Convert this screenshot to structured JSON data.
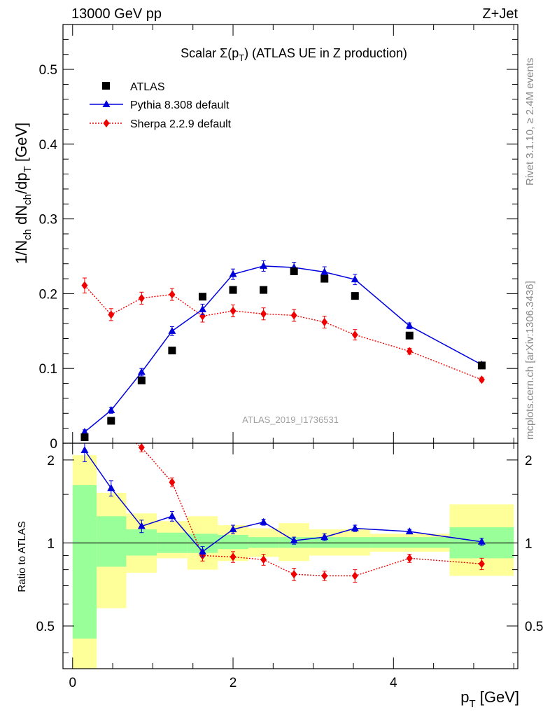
{
  "header": {
    "left": "13000 GeV pp",
    "right": "Z+Jet"
  },
  "side_labels": {
    "rivet": "Rivet 3.1.10, ≥ 2.4M events",
    "mcplots": "mcplots.cern.ch [arXiv:1306.3436]"
  },
  "watermark": "ATLAS_2019_I1736531",
  "colors": {
    "atlas": "#000000",
    "pythia": "#0000dd",
    "sherpa": "#ee0000",
    "band_yellow": "#ffff99",
    "band_green": "#99ff99"
  },
  "chart_data": [
    {
      "type": "scatter",
      "title": "Scalar Σ(pT) (ATLAS UE in Z production)",
      "xlabel": "pT [GeV]",
      "ylabel": "1/Nch dNch/dpT [GeV]",
      "xlim": [
        -0.12,
        5.55
      ],
      "ylim": [
        0,
        0.56
      ],
      "yticks": [
        0,
        0.1,
        0.2,
        0.3,
        0.4,
        0.5
      ],
      "ytick_labels": [
        "0",
        "0.1",
        "0.2",
        "0.3",
        "0.4",
        "0.5"
      ],
      "legend_position": "top-left",
      "x": [
        0.15,
        0.48,
        0.86,
        1.24,
        1.62,
        2.0,
        2.38,
        2.76,
        3.14,
        3.52,
        4.2,
        5.1
      ],
      "series": [
        {
          "name": "ATLAS",
          "marker": "square",
          "values": [
            0.008,
            0.03,
            0.084,
            0.124,
            0.196,
            0.205,
            0.205,
            0.23,
            0.22,
            0.197,
            0.144,
            0.104
          ]
        },
        {
          "name": "Pythia 8.308 default",
          "marker": "triangle",
          "values": [
            0.015,
            0.044,
            0.095,
            0.15,
            0.179,
            0.226,
            0.237,
            0.235,
            0.229,
            0.219,
            0.157,
            0.105
          ],
          "errors": [
            0.003,
            0.004,
            0.005,
            0.006,
            0.007,
            0.007,
            0.007,
            0.007,
            0.007,
            0.007,
            0.004,
            0.003
          ]
        },
        {
          "name": "Sherpa 2.2.9 default",
          "marker": "diamond",
          "values": [
            0.211,
            0.172,
            0.194,
            0.199,
            0.17,
            0.177,
            0.173,
            0.171,
            0.162,
            0.145,
            0.123,
            0.085
          ],
          "errors": [
            0.01,
            0.008,
            0.008,
            0.008,
            0.008,
            0.008,
            0.008,
            0.008,
            0.008,
            0.007,
            0.004,
            0.003
          ]
        }
      ]
    },
    {
      "type": "line",
      "ylabel": "Ratio to ATLAS",
      "xlabel": "pT [GeV]",
      "xlim": [
        -0.12,
        5.55
      ],
      "ylim": [
        0.35,
        2.3
      ],
      "scale": "log",
      "yticks": [
        0.5,
        1,
        2
      ],
      "ytick_labels": [
        "0.5",
        "1",
        "2"
      ],
      "xticks": [
        0,
        2,
        4
      ],
      "xtick_labels": [
        "0",
        "2",
        "4"
      ],
      "reference_line": 1,
      "x": [
        0.15,
        0.48,
        0.86,
        1.24,
        1.62,
        2.0,
        2.38,
        2.76,
        3.14,
        3.52,
        4.2,
        5.1
      ],
      "series": [
        {
          "name": "Pythia 8.308 default",
          "values": [
            2.17,
            1.58,
            1.15,
            1.25,
            0.93,
            1.12,
            1.19,
            1.02,
            1.05,
            1.13,
            1.1,
            1.01
          ],
          "errors": [
            0.2,
            0.1,
            0.06,
            0.05,
            0.04,
            0.04,
            0.03,
            0.03,
            0.03,
            0.03,
            0.02,
            0.03
          ]
        },
        {
          "name": "Sherpa 2.2.9 default",
          "values": [
            null,
            null,
            2.22,
            1.66,
            0.9,
            0.89,
            0.87,
            0.77,
            0.76,
            0.76,
            0.88,
            0.84
          ],
          "errors": [
            null,
            null,
            0.08,
            0.06,
            0.04,
            0.04,
            0.04,
            0.04,
            0.03,
            0.04,
            0.03,
            0.04
          ]
        }
      ],
      "uncertainty_bands": {
        "bins": [
          [
            0.0,
            0.3
          ],
          [
            0.3,
            0.67
          ],
          [
            0.67,
            1.05
          ],
          [
            1.05,
            1.43
          ],
          [
            1.43,
            1.81
          ],
          [
            1.81,
            2.19
          ],
          [
            2.19,
            2.57
          ],
          [
            2.57,
            2.95
          ],
          [
            2.95,
            3.33
          ],
          [
            3.33,
            3.71
          ],
          [
            3.71,
            4.7
          ],
          [
            4.7,
            5.5
          ]
        ],
        "inner": [
          [
            0.45,
            1.62
          ],
          [
            0.82,
            1.25
          ],
          [
            0.9,
            1.12
          ],
          [
            0.92,
            1.09
          ],
          [
            0.92,
            1.08
          ],
          [
            0.95,
            1.07
          ],
          [
            0.96,
            1.05
          ],
          [
            0.96,
            1.05
          ],
          [
            0.96,
            1.05
          ],
          [
            0.96,
            1.05
          ],
          [
            0.96,
            1.05
          ],
          [
            0.88,
            1.14
          ]
        ],
        "outer": [
          [
            0.3,
            2.08
          ],
          [
            0.58,
            1.52
          ],
          [
            0.78,
            1.28
          ],
          [
            0.88,
            1.2
          ],
          [
            0.8,
            1.25
          ],
          [
            0.86,
            1.16
          ],
          [
            0.89,
            1.13
          ],
          [
            0.86,
            1.18
          ],
          [
            0.9,
            1.12
          ],
          [
            0.9,
            1.12
          ],
          [
            0.93,
            1.08
          ],
          [
            0.76,
            1.38
          ]
        ]
      }
    }
  ]
}
